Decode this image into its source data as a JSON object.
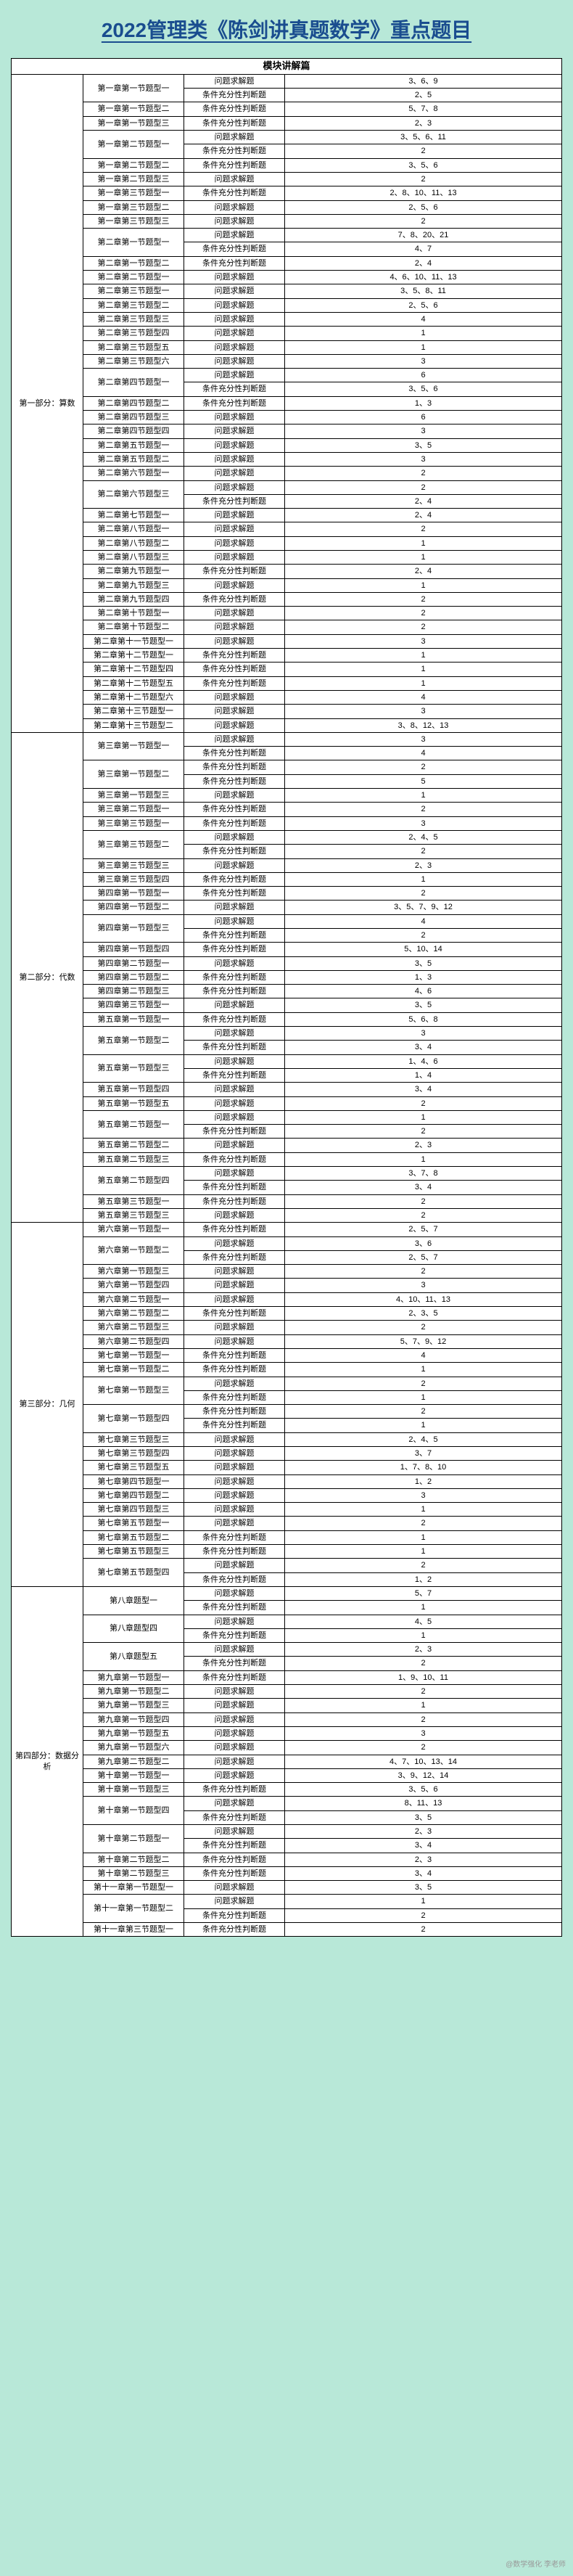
{
  "title": "2022管理类《陈剑讲真题数学》重点题目",
  "header": "模块讲解篇",
  "t_problem": "问题求解题",
  "t_cond": "条件充分性判断题",
  "sections": [
    {
      "name": "第一部分：算数",
      "rows": [
        {
          "c": "第一章第一节题型一",
          "t": "p",
          "n": "3、6、9"
        },
        {
          "c": "",
          "t": "c",
          "n": "2、5"
        },
        {
          "c": "第一章第一节题型二",
          "t": "c",
          "n": "5、7、8"
        },
        {
          "c": "第一章第一节题型三",
          "t": "c",
          "n": "2、3"
        },
        {
          "c": "第一章第二节题型一",
          "t": "p",
          "n": "3、5、6、11"
        },
        {
          "c": "",
          "t": "c",
          "n": "2"
        },
        {
          "c": "第一章第二节题型二",
          "t": "c",
          "n": "3、5、6"
        },
        {
          "c": "第一章第二节题型三",
          "t": "p",
          "n": "2"
        },
        {
          "c": "第一章第三节题型一",
          "t": "c",
          "n": "2、8、10、11、13"
        },
        {
          "c": "第一章第三节题型二",
          "t": "p",
          "n": "2、5、6"
        },
        {
          "c": "第一章第三节题型三",
          "t": "p",
          "n": "2"
        },
        {
          "c": "第二章第一节题型一",
          "t": "p",
          "n": "7、8、20、21"
        },
        {
          "c": "",
          "t": "c",
          "n": "4、7"
        },
        {
          "c": "第二章第一节题型二",
          "t": "c",
          "n": "2、4"
        },
        {
          "c": "第二章第二节题型一",
          "t": "p",
          "n": "4、6、10、11、13"
        },
        {
          "c": "第二章第三节题型一",
          "t": "p",
          "n": "3、5、8、11"
        },
        {
          "c": "第二章第三节题型二",
          "t": "p",
          "n": "2、5、6"
        },
        {
          "c": "第二章第三节题型三",
          "t": "p",
          "n": "4"
        },
        {
          "c": "第二章第三节题型四",
          "t": "p",
          "n": "1"
        },
        {
          "c": "第二章第三节题型五",
          "t": "p",
          "n": "1"
        },
        {
          "c": "第二章第三节题型六",
          "t": "p",
          "n": "3"
        },
        {
          "c": "第二章第四节题型一",
          "t": "p",
          "n": "6"
        },
        {
          "c": "",
          "t": "c",
          "n": "3、5、6"
        },
        {
          "c": "第二章第四节题型二",
          "t": "c",
          "n": "1、3"
        },
        {
          "c": "第二章第四节题型三",
          "t": "p",
          "n": "6"
        },
        {
          "c": "第二章第四节题型四",
          "t": "p",
          "n": "3"
        },
        {
          "c": "第二章第五节题型一",
          "t": "p",
          "n": "3、5"
        },
        {
          "c": "第二章第五节题型二",
          "t": "p",
          "n": "3"
        },
        {
          "c": "第二章第六节题型一",
          "t": "p",
          "n": "2"
        },
        {
          "c": "第二章第六节题型三",
          "t": "p",
          "n": "2"
        },
        {
          "c": "",
          "t": "c",
          "n": "2、4"
        },
        {
          "c": "第二章第七节题型一",
          "t": "p",
          "n": "2、4"
        },
        {
          "c": "第二章第八节题型一",
          "t": "p",
          "n": "2"
        },
        {
          "c": "第二章第八节题型二",
          "t": "p",
          "n": "1"
        },
        {
          "c": "第二章第八节题型三",
          "t": "p",
          "n": "1"
        },
        {
          "c": "第二章第九节题型一",
          "t": "c",
          "n": "2、4"
        },
        {
          "c": "第二章第九节题型三",
          "t": "p",
          "n": "1"
        },
        {
          "c": "第二章第九节题型四",
          "t": "c",
          "n": "2"
        },
        {
          "c": "第二章第十节题型一",
          "t": "p",
          "n": "2"
        },
        {
          "c": "第二章第十节题型二",
          "t": "p",
          "n": "2"
        },
        {
          "c": "第二章第十一节题型一",
          "t": "p",
          "n": "3"
        },
        {
          "c": "第二章第十二节题型一",
          "t": "c",
          "n": "1"
        },
        {
          "c": "第二章第十二节题型四",
          "t": "c",
          "n": "1"
        },
        {
          "c": "第二章第十二节题型五",
          "t": "c",
          "n": "1"
        },
        {
          "c": "第二章第十二节题型六",
          "t": "p",
          "n": "4"
        },
        {
          "c": "第二章第十三节题型一",
          "t": "p",
          "n": "3"
        },
        {
          "c": "第二章第十三节题型二",
          "t": "p",
          "n": "3、8、12、13"
        }
      ]
    },
    {
      "name": "第二部分：代数",
      "rows": [
        {
          "c": "第三章第一节题型一",
          "t": "p",
          "n": "3"
        },
        {
          "c": "",
          "t": "c",
          "n": "4"
        },
        {
          "c": "第三章第一节题型二",
          "t": "c",
          "n": "2"
        },
        {
          "c": "",
          "t": "c",
          "n": "5"
        },
        {
          "c": "第三章第一节题型三",
          "t": "p",
          "n": "1"
        },
        {
          "c": "第三章第二节题型一",
          "t": "c",
          "n": "2"
        },
        {
          "c": "第三章第三节题型一",
          "t": "c",
          "n": "3"
        },
        {
          "c": "第三章第三节题型二",
          "t": "p",
          "n": "2、4、5"
        },
        {
          "c": "",
          "t": "c",
          "n": "2"
        },
        {
          "c": "第三章第三节题型三",
          "t": "p",
          "n": "2、3"
        },
        {
          "c": "第三章第三节题型四",
          "t": "c",
          "n": "1"
        },
        {
          "c": "第四章第一节题型一",
          "t": "c",
          "n": "2"
        },
        {
          "c": "第四章第一节题型二",
          "t": "p",
          "n": "3、5、7、9、12"
        },
        {
          "c": "第四章第一节题型三",
          "t": "p",
          "n": "4"
        },
        {
          "c": "",
          "t": "c",
          "n": "2"
        },
        {
          "c": "第四章第一节题型四",
          "t": "c",
          "n": "5、10、14"
        },
        {
          "c": "第四章第二节题型一",
          "t": "p",
          "n": "3、5"
        },
        {
          "c": "第四章第二节题型二",
          "t": "c",
          "n": "1、3"
        },
        {
          "c": "第四章第二节题型三",
          "t": "c",
          "n": "4、6"
        },
        {
          "c": "第四章第三节题型一",
          "t": "p",
          "n": "3、5"
        },
        {
          "c": "第五章第一节题型一",
          "t": "c",
          "n": "5、6、8"
        },
        {
          "c": "第五章第一节题型二",
          "t": "p",
          "n": "3"
        },
        {
          "c": "",
          "t": "c",
          "n": "3、4"
        },
        {
          "c": "第五章第一节题型三",
          "t": "p",
          "n": "1、4、6"
        },
        {
          "c": "",
          "t": "c",
          "n": "1、4"
        },
        {
          "c": "第五章第一节题型四",
          "t": "p",
          "n": "3、4"
        },
        {
          "c": "第五章第一节题型五",
          "t": "p",
          "n": "2"
        },
        {
          "c": "第五章第二节题型一",
          "t": "p",
          "n": "1"
        },
        {
          "c": "",
          "t": "c",
          "n": "2"
        },
        {
          "c": "第五章第二节题型二",
          "t": "p",
          "n": "2、3"
        },
        {
          "c": "第五章第二节题型三",
          "t": "c",
          "n": "1"
        },
        {
          "c": "第五章第二节题型四",
          "t": "p",
          "n": "3、7、8"
        },
        {
          "c": "",
          "t": "c",
          "n": "3、4"
        },
        {
          "c": "第五章第三节题型一",
          "t": "c",
          "n": "2"
        },
        {
          "c": "第五章第三节题型三",
          "t": "p",
          "n": "2"
        }
      ]
    },
    {
      "name": "第三部分：几何",
      "rows": [
        {
          "c": "第六章第一节题型一",
          "t": "c",
          "n": "2、5、7"
        },
        {
          "c": "第六章第一节题型二",
          "t": "p",
          "n": "3、6"
        },
        {
          "c": "",
          "t": "c",
          "n": "2、5、7"
        },
        {
          "c": "第六章第一节题型三",
          "t": "p",
          "n": "2"
        },
        {
          "c": "第六章第一节题型四",
          "t": "p",
          "n": "3"
        },
        {
          "c": "第六章第二节题型一",
          "t": "p",
          "n": "4、10、11、13"
        },
        {
          "c": "第六章第二节题型二",
          "t": "c",
          "n": "2、3、5"
        },
        {
          "c": "第六章第二节题型三",
          "t": "p",
          "n": "2"
        },
        {
          "c": "第六章第二节题型四",
          "t": "p",
          "n": "5、7、9、12"
        },
        {
          "c": "第七章第一节题型一",
          "t": "c",
          "n": "4"
        },
        {
          "c": "第七章第一节题型二",
          "t": "c",
          "n": "1"
        },
        {
          "c": "第七章第一节题型三",
          "t": "p",
          "n": "2"
        },
        {
          "c": "",
          "t": "c",
          "n": "1"
        },
        {
          "c": "第七章第一节题型四",
          "t": "c",
          "n": "2"
        },
        {
          "c": "",
          "t": "c",
          "n": "1"
        },
        {
          "c": "第七章第三节题型三",
          "t": "p",
          "n": "2、4、5"
        },
        {
          "c": "第七章第三节题型四",
          "t": "p",
          "n": "3、7"
        },
        {
          "c": "第七章第三节题型五",
          "t": "p",
          "n": "1、7、8、10"
        },
        {
          "c": "第七章第四节题型一",
          "t": "p",
          "n": "1、2"
        },
        {
          "c": "第七章第四节题型二",
          "t": "p",
          "n": "3"
        },
        {
          "c": "第七章第四节题型三",
          "t": "p",
          "n": "1"
        },
        {
          "c": "第七章第五节题型一",
          "t": "p",
          "n": "2"
        },
        {
          "c": "第七章第五节题型二",
          "t": "c",
          "n": "1"
        },
        {
          "c": "第七章第五节题型三",
          "t": "c",
          "n": "1"
        },
        {
          "c": "第七章第五节题型四",
          "t": "p",
          "n": "2"
        },
        {
          "c": "",
          "t": "c",
          "n": "1、2"
        }
      ]
    },
    {
      "name": "第四部分：数据分析",
      "rows": [
        {
          "c": "第八章题型一",
          "t": "p",
          "n": "5、7"
        },
        {
          "c": "",
          "t": "c",
          "n": "1"
        },
        {
          "c": "第八章题型四",
          "t": "p",
          "n": "4、5"
        },
        {
          "c": "",
          "t": "c",
          "n": "1"
        },
        {
          "c": "第八章题型五",
          "t": "p",
          "n": "2、3"
        },
        {
          "c": "",
          "t": "c",
          "n": "2"
        },
        {
          "c": "第九章第一节题型一",
          "t": "c",
          "n": "1、9、10、11"
        },
        {
          "c": "第九章第一节题型二",
          "t": "p",
          "n": "2"
        },
        {
          "c": "第九章第一节题型三",
          "t": "p",
          "n": "1"
        },
        {
          "c": "第九章第一节题型四",
          "t": "p",
          "n": "2"
        },
        {
          "c": "第九章第一节题型五",
          "t": "p",
          "n": "3"
        },
        {
          "c": "第九章第一节题型六",
          "t": "p",
          "n": "2"
        },
        {
          "c": "第九章第二节题型二",
          "t": "p",
          "n": "4、7、10、13、14"
        },
        {
          "c": "第十章第一节题型一",
          "t": "p",
          "n": "3、9、12、14"
        },
        {
          "c": "第十章第一节题型三",
          "t": "c",
          "n": "3、5、6"
        },
        {
          "c": "第十章第一节题型四",
          "t": "p",
          "n": "8、11、13"
        },
        {
          "c": "",
          "t": "c",
          "n": "3、5"
        },
        {
          "c": "第十章第二节题型一",
          "t": "p",
          "n": "2、3"
        },
        {
          "c": "",
          "t": "c",
          "n": "3、4"
        },
        {
          "c": "第十章第二节题型二",
          "t": "c",
          "n": "2、3"
        },
        {
          "c": "第十章第二节题型三",
          "t": "c",
          "n": "3、4"
        },
        {
          "c": "第十一章第一节题型一",
          "t": "p",
          "n": "3、5"
        },
        {
          "c": "第十一章第一节题型二",
          "t": "p",
          "n": "1"
        },
        {
          "c": "",
          "t": "c",
          "n": "2"
        },
        {
          "c": "第十一章第三节题型一",
          "t": "c",
          "n": "2"
        }
      ]
    }
  ],
  "colors": {
    "bg": "#b8e8d8",
    "title": "#1a4d8f",
    "border": "#000000"
  }
}
